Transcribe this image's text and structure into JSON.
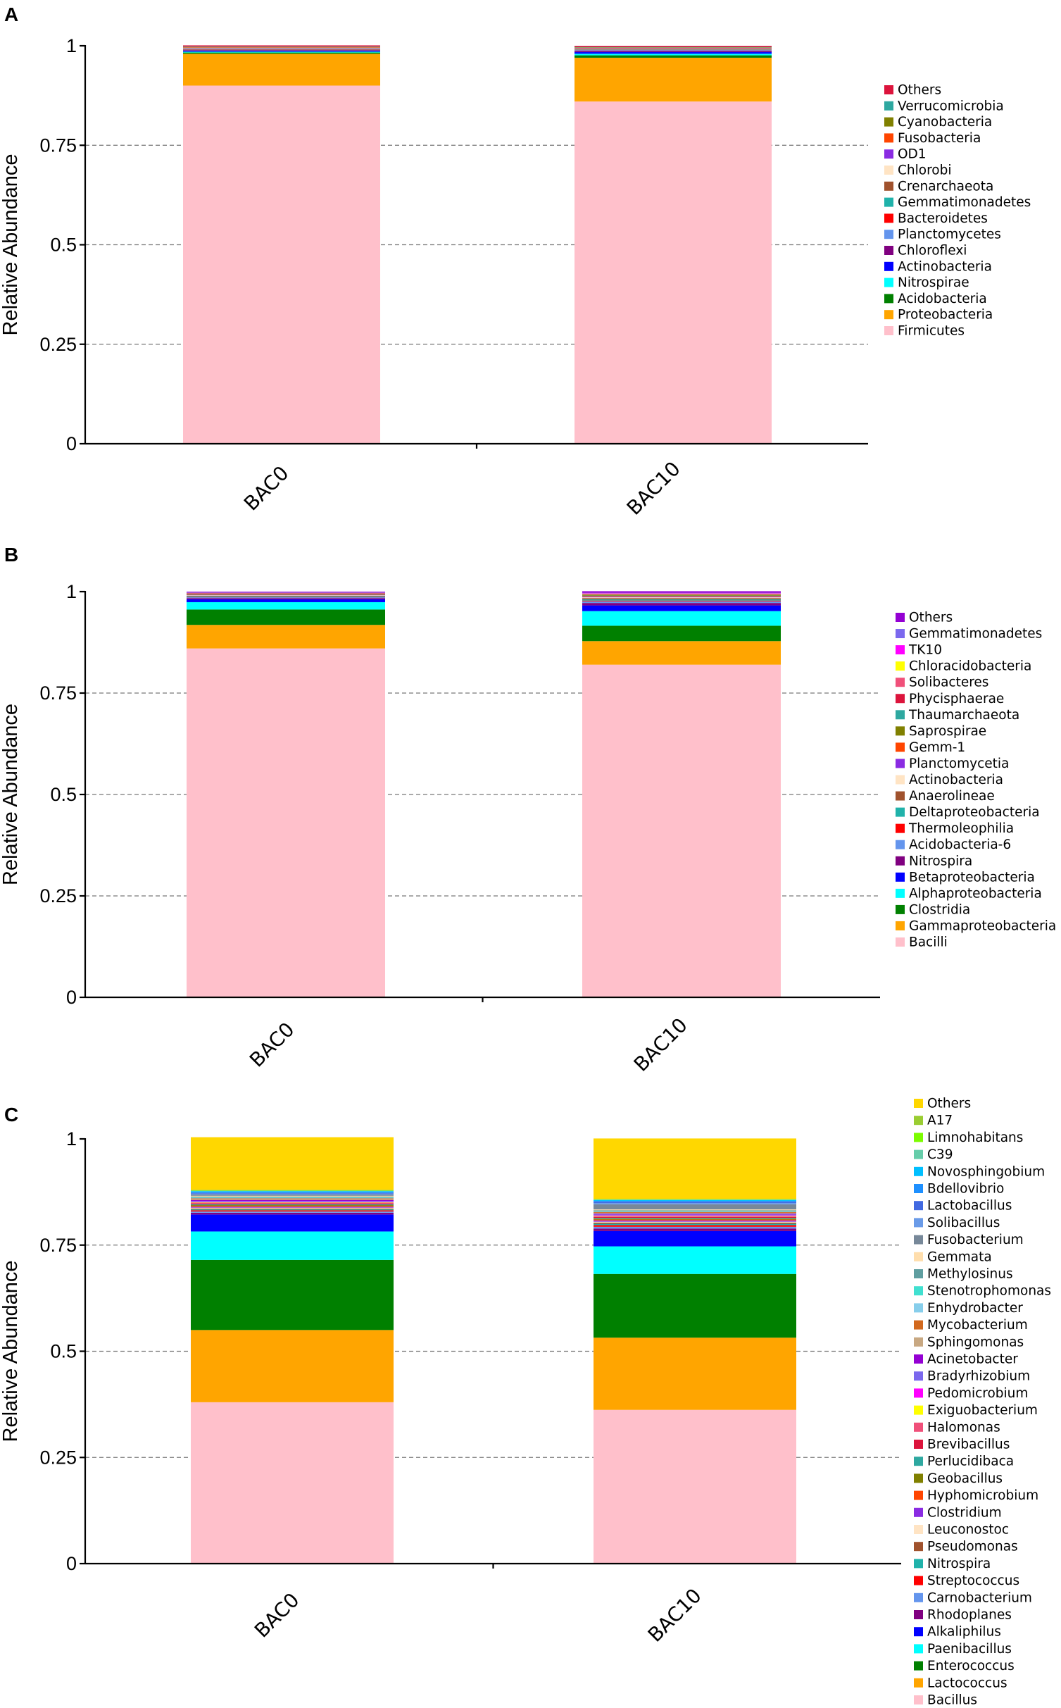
{
  "chart_data": [
    {
      "panel": "A",
      "type": "bar",
      "stacked": true,
      "ylabel": "Relative Abundance",
      "ylim": [
        0,
        1
      ],
      "yticks": [
        "0",
        "0.25",
        "0.5",
        "0.75",
        "1"
      ],
      "categories": [
        "BAC0",
        "BAC10"
      ],
      "legend": "right",
      "series": [
        {
          "name": "Firmicutes",
          "color": "#FFC0CB",
          "values": [
            0.9,
            0.86
          ]
        },
        {
          "name": "Proteobacteria",
          "color": "#FFA500",
          "values": [
            0.08,
            0.11
          ]
        },
        {
          "name": "Acidobacteria",
          "color": "#008000",
          "values": [
            0.003,
            0.006
          ]
        },
        {
          "name": "Nitrospirae",
          "color": "#00FFFF",
          "values": [
            0.002,
            0.004
          ]
        },
        {
          "name": "Actinobacteria",
          "color": "#0000FF",
          "values": [
            0.002,
            0.004
          ]
        },
        {
          "name": "Chloroflexi",
          "color": "#800080",
          "values": [
            0.002,
            0.003
          ]
        },
        {
          "name": "Planctomycetes",
          "color": "#6495ED",
          "values": [
            0.001,
            0.002
          ]
        },
        {
          "name": "Bacteroidetes",
          "color": "#FF0000",
          "values": [
            0.001,
            0.001
          ]
        },
        {
          "name": "Gemmatimonadetes",
          "color": "#20B2AA",
          "values": [
            0.001,
            0.001
          ]
        },
        {
          "name": "Crenarchaeota",
          "color": "#A0522D",
          "values": [
            0.001,
            0.001
          ]
        },
        {
          "name": "Chlorobi",
          "color": "#FFE4C4",
          "values": [
            0.001,
            0.001
          ]
        },
        {
          "name": "OD1",
          "color": "#8A2BE2",
          "values": [
            0.001,
            0.001
          ]
        },
        {
          "name": "Fusobacteria",
          "color": "#FF4500",
          "values": [
            0.001,
            0.001
          ]
        },
        {
          "name": "Cyanobacteria",
          "color": "#808000",
          "values": [
            0.001,
            0.001
          ]
        },
        {
          "name": "Verrucomicrobia",
          "color": "#2EA8A0",
          "values": [
            0.001,
            0.001
          ]
        },
        {
          "name": "Others",
          "color": "#DC143C",
          "values": [
            0.003,
            0.003
          ]
        }
      ]
    },
    {
      "panel": "B",
      "type": "bar",
      "stacked": true,
      "ylabel": "Relative Abundance",
      "ylim": [
        0,
        1
      ],
      "yticks": [
        "0",
        "0.25",
        "0.5",
        "0.75",
        "1"
      ],
      "categories": [
        "BAC0",
        "BAC10"
      ],
      "legend": "right",
      "series": [
        {
          "name": "Bacilli",
          "color": "#FFC0CB",
          "values": [
            0.86,
            0.82
          ]
        },
        {
          "name": "Gammaproteobacteria",
          "color": "#FFA500",
          "values": [
            0.058,
            0.058
          ]
        },
        {
          "name": "Clostridia",
          "color": "#008000",
          "values": [
            0.038,
            0.038
          ]
        },
        {
          "name": "Alphaproteobacteria",
          "color": "#00FFFF",
          "values": [
            0.018,
            0.036
          ]
        },
        {
          "name": "Betaproteobacteria",
          "color": "#0000FF",
          "values": [
            0.007,
            0.014
          ]
        },
        {
          "name": "Nitrospira",
          "color": "#800080",
          "values": [
            0.003,
            0.006
          ]
        },
        {
          "name": "Acidobacteria-6",
          "color": "#6495ED",
          "values": [
            0.002,
            0.004
          ]
        },
        {
          "name": "Thermoleophilia",
          "color": "#FF0000",
          "values": [
            0.001,
            0.002
          ]
        },
        {
          "name": "Deltaproteobacteria",
          "color": "#20B2AA",
          "values": [
            0.002,
            0.003
          ]
        },
        {
          "name": "Anaerolineae",
          "color": "#A0522D",
          "values": [
            0.001,
            0.003
          ]
        },
        {
          "name": "Actinobacteria",
          "color": "#FFE4C4",
          "values": [
            0.001,
            0.002
          ]
        },
        {
          "name": "Planctomycetia",
          "color": "#8A2BE2",
          "values": [
            0.001,
            0.002
          ]
        },
        {
          "name": "Gemm-1",
          "color": "#FF4500",
          "values": [
            0.001,
            0.001
          ]
        },
        {
          "name": "Saprospirae",
          "color": "#808000",
          "values": [
            0.001,
            0.002
          ]
        },
        {
          "name": "Thaumarchaeota",
          "color": "#2EA8A0",
          "values": [
            0.001,
            0.001
          ]
        },
        {
          "name": "Phycisphaerae",
          "color": "#DC143C",
          "values": [
            0.001,
            0.001
          ]
        },
        {
          "name": "Solibacteres",
          "color": "#F0507A",
          "values": [
            0.001,
            0.001
          ]
        },
        {
          "name": "Chloracidobacteria",
          "color": "#FFFF00",
          "values": [
            0.0,
            0.001
          ]
        },
        {
          "name": "TK10",
          "color": "#FF00FF",
          "values": [
            0.0,
            0.001
          ]
        },
        {
          "name": "Gemmatimonadetes",
          "color": "#7B68EE",
          "values": [
            0.001,
            0.001
          ]
        },
        {
          "name": "Others",
          "color": "#9400D3",
          "values": [
            0.002,
            0.004
          ]
        }
      ]
    },
    {
      "panel": "C",
      "type": "bar",
      "stacked": true,
      "ylabel": "Relative Abundance",
      "ylim": [
        0,
        1
      ],
      "yticks": [
        "0",
        "0.25",
        "0.5",
        "0.75",
        "1"
      ],
      "categories": [
        "BAC0",
        "BAC10"
      ],
      "legend": "right",
      "series": [
        {
          "name": "Bacillus",
          "color": "#FFC0CB",
          "values": [
            0.38,
            0.362
          ]
        },
        {
          "name": "Lactococcus",
          "color": "#FFA500",
          "values": [
            0.17,
            0.17
          ]
        },
        {
          "name": "Enterococcus",
          "color": "#008000",
          "values": [
            0.165,
            0.15
          ]
        },
        {
          "name": "Paenibacillus",
          "color": "#00FFFF",
          "values": [
            0.067,
            0.065
          ]
        },
        {
          "name": "Alkaliphilus",
          "color": "#0000FF",
          "values": [
            0.04,
            0.036
          ]
        },
        {
          "name": "Rhodoplanes",
          "color": "#800080",
          "values": [
            0.004,
            0.006
          ]
        },
        {
          "name": "Carnobacterium",
          "color": "#6495ED",
          "values": [
            0.003,
            0.004
          ]
        },
        {
          "name": "Streptococcus",
          "color": "#FF0000",
          "values": [
            0.003,
            0.004
          ]
        },
        {
          "name": "Nitrospira",
          "color": "#20B2AA",
          "values": [
            0.002,
            0.003
          ]
        },
        {
          "name": "Pseudomonas",
          "color": "#A0522D",
          "values": [
            0.002,
            0.003
          ]
        },
        {
          "name": "Leuconostoc",
          "color": "#FFE4C4",
          "values": [
            0.002,
            0.002
          ]
        },
        {
          "name": "Clostridium",
          "color": "#8A2BE2",
          "values": [
            0.002,
            0.003
          ]
        },
        {
          "name": "Hyphomicrobium",
          "color": "#FF4500",
          "values": [
            0.002,
            0.002
          ]
        },
        {
          "name": "Geobacillus",
          "color": "#808000",
          "values": [
            0.002,
            0.002
          ]
        },
        {
          "name": "Perlucidibaca",
          "color": "#2EA8A0",
          "values": [
            0.002,
            0.002
          ]
        },
        {
          "name": "Brevibacillus",
          "color": "#DC143C",
          "values": [
            0.002,
            0.002
          ]
        },
        {
          "name": "Halomonas",
          "color": "#F0507A",
          "values": [
            0.002,
            0.002
          ]
        },
        {
          "name": "Exiguobacterium",
          "color": "#FFFF00",
          "values": [
            0.001,
            0.001
          ]
        },
        {
          "name": "Pedomicrobium",
          "color": "#FF00FF",
          "values": [
            0.001,
            0.001
          ]
        },
        {
          "name": "Bradyrhizobium",
          "color": "#7B68EE",
          "values": [
            0.002,
            0.002
          ]
        },
        {
          "name": "Acinetobacter",
          "color": "#9400D3",
          "values": [
            0.002,
            0.002
          ]
        },
        {
          "name": "Sphingomonas",
          "color": "#C8A882",
          "values": [
            0.002,
            0.002
          ]
        },
        {
          "name": "Mycobacterium",
          "color": "#D2691E",
          "values": [
            0.002,
            0.002
          ]
        },
        {
          "name": "Enhydrobacter",
          "color": "#87CEEB",
          "values": [
            0.001,
            0.001
          ]
        },
        {
          "name": "Stenotrophomonas",
          "color": "#40E0D0",
          "values": [
            0.001,
            0.001
          ]
        },
        {
          "name": "Methylosinus",
          "color": "#5F9EA0",
          "values": [
            0.002,
            0.002
          ]
        },
        {
          "name": "Gemmata",
          "color": "#FFDEAD",
          "values": [
            0.002,
            0.002
          ]
        },
        {
          "name": "Fusobacterium",
          "color": "#778899",
          "values": [
            0.003,
            0.012
          ]
        },
        {
          "name": "Solibacillus",
          "color": "#6A9BE8",
          "values": [
            0.002,
            0.003
          ]
        },
        {
          "name": "Lactobacillus",
          "color": "#4169E1",
          "values": [
            0.002,
            0.003
          ]
        },
        {
          "name": "Bdellovibrio",
          "color": "#1E90FF",
          "values": [
            0.002,
            0.002
          ]
        },
        {
          "name": "Novosphingobium",
          "color": "#00BFFF",
          "values": [
            0.002,
            0.002
          ]
        },
        {
          "name": "C39",
          "color": "#66CDAA",
          "values": [
            0.001,
            0.001
          ]
        },
        {
          "name": "Limnohabitans",
          "color": "#7CFC00",
          "values": [
            0.001,
            0.001
          ]
        },
        {
          "name": "A17",
          "color": "#9ACD32",
          "values": [
            0.001,
            0.001
          ]
        },
        {
          "name": "Others",
          "color": "#FFD700",
          "values": [
            0.124,
            0.142
          ]
        }
      ]
    }
  ]
}
